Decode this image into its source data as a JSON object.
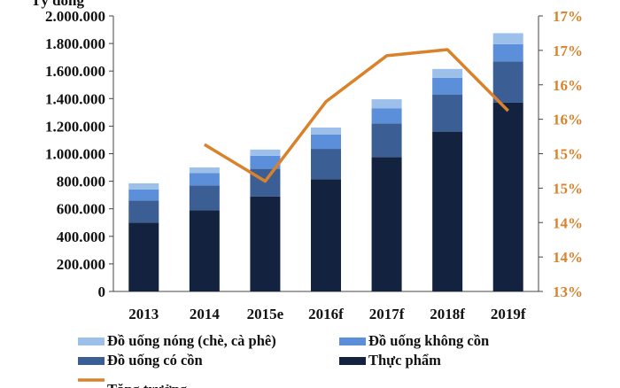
{
  "chart_data": {
    "type": "bar",
    "stacked": true,
    "y_unit_label": "Tỷ đồng",
    "categories": [
      "2013",
      "2014",
      "2015e",
      "2016f",
      "2017f",
      "2018f",
      "2019f"
    ],
    "ylim": [
      0,
      2000000
    ],
    "yticks": [
      "0",
      "200.000",
      "400.000",
      "600.000",
      "800.000",
      "1.000.000",
      "1.200.000",
      "1.400.000",
      "1.600.000",
      "1.800.000",
      "2.000.000"
    ],
    "y2lim": [
      13,
      17.5
    ],
    "y2ticks": [
      "13%",
      "14%",
      "14%",
      "15%",
      "15%",
      "16%",
      "16%",
      "17%",
      "17%"
    ],
    "series": [
      {
        "name": "Thực phẩm",
        "color": "#13223f",
        "values": [
          500000,
          590000,
          690000,
          815000,
          975000,
          1160000,
          1370000
        ]
      },
      {
        "name": "Đồ uống có cồn",
        "color": "#3b5e94",
        "values": [
          160000,
          180000,
          200000,
          220000,
          245000,
          270000,
          300000
        ]
      },
      {
        "name": "Đồ uống không cồn",
        "color": "#5b8fd9",
        "values": [
          80000,
          90000,
          95000,
          105000,
          110000,
          120000,
          125000
        ]
      },
      {
        "name": "Đồ uống nóng (chè, cà phê)",
        "color": "#9cc0ea",
        "values": [
          45000,
          40000,
          45000,
          50000,
          65000,
          65000,
          80000
        ]
      }
    ],
    "line": {
      "name": "Tăng trưởng",
      "color": "#d9822b",
      "values": [
        null,
        15.4,
        14.8,
        16.1,
        16.85,
        16.95,
        15.95
      ]
    },
    "legend": {
      "placement": "bottom"
    }
  }
}
